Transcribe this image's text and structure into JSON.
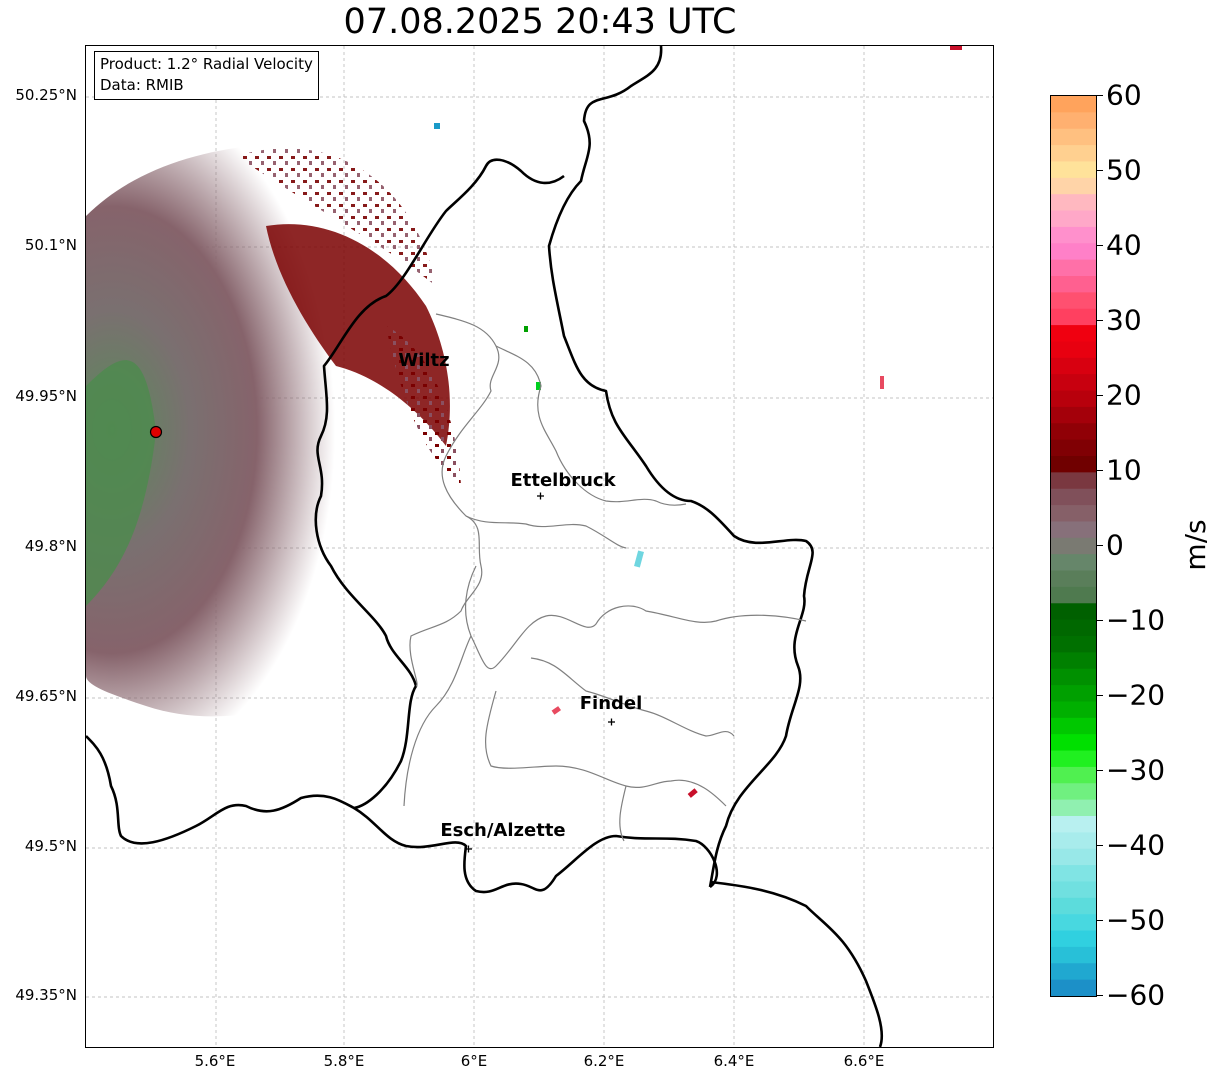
{
  "title": "07.08.2025 20:43 UTC",
  "info": {
    "product": "Product: 1.2° Radial Velocity",
    "data_source": "Data: RMIB"
  },
  "axes": {
    "lat_labels": [
      "50.25°N",
      "50.1°N",
      "49.95°N",
      "49.8°N",
      "49.65°N",
      "49.5°N",
      "49.35°N"
    ],
    "lon_labels": [
      "5.6°E",
      "5.8°E",
      "6°E",
      "6.2°E",
      "6.4°E",
      "6.6°E"
    ]
  },
  "cities": [
    {
      "name": "Wiltz"
    },
    {
      "name": "Ettelbruck"
    },
    {
      "name": "Findel"
    },
    {
      "name": "Esch/Alzette"
    }
  ],
  "colorbar": {
    "unit": "m/s",
    "ticks": [
      "60",
      "50",
      "40",
      "30",
      "20",
      "10",
      "0",
      "−10",
      "−20",
      "−30",
      "−40",
      "−50",
      "−60"
    ],
    "range": [
      -60,
      60
    ]
  },
  "colors": {
    "receding_strong": "#7a0000",
    "receding_moderate": "#c00010",
    "near_zero_positive": "#86636b",
    "near_zero_negative": "#5e7f5e",
    "approaching": "#00a000",
    "radar_marker": "#e00000"
  }
}
